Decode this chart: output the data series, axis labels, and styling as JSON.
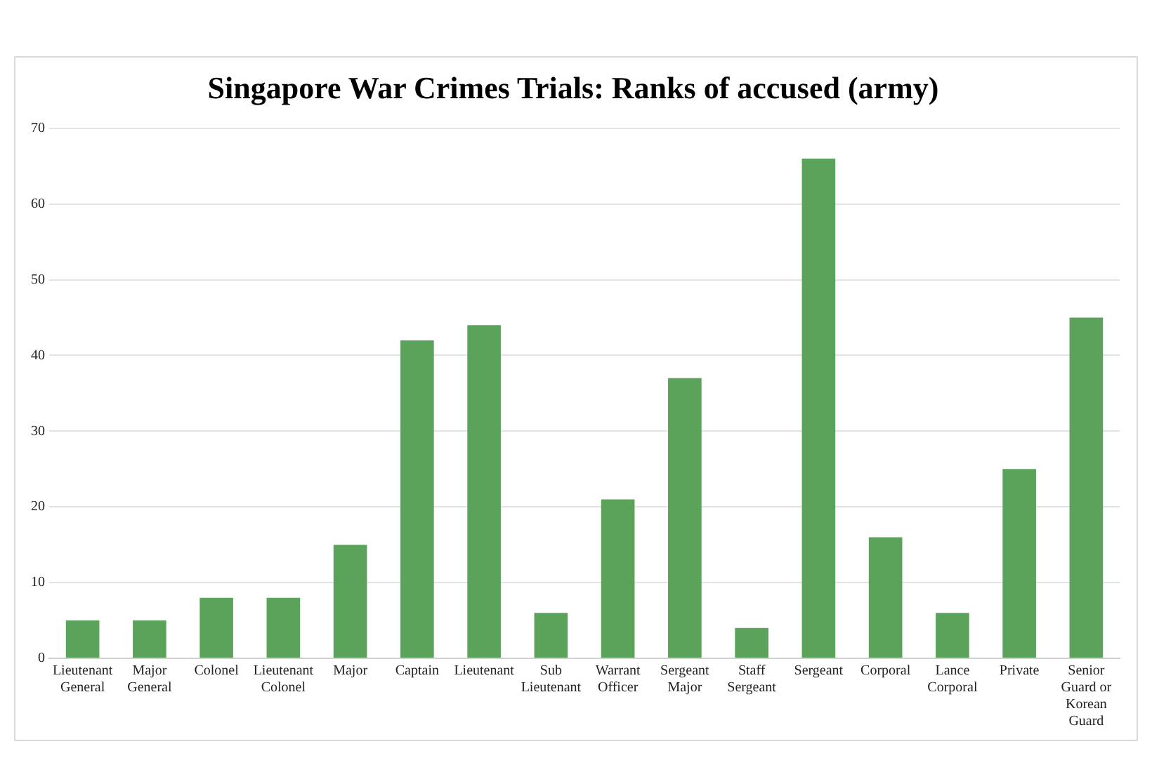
{
  "chart_data": {
    "type": "bar",
    "title": "Singapore War Crimes Trials: Ranks of accused (army)",
    "categories": [
      "Lieutenant General",
      "Major General",
      "Colonel",
      "Lieutenant Colonel",
      "Major",
      "Captain",
      "Lieutenant",
      "Sub Lieutenant",
      "Warrant Officer",
      "Sergeant Major",
      "Staff Sergeant",
      "Sergeant",
      "Corporal",
      "Lance Corporal",
      "Private",
      "Senior Guard or Korean Guard"
    ],
    "values": [
      5,
      5,
      8,
      8,
      15,
      42,
      44,
      6,
      21,
      37,
      4,
      66,
      16,
      6,
      25,
      45
    ],
    "color": "#5ba35b",
    "ylim": [
      0,
      70
    ],
    "yticks": [
      0,
      10,
      20,
      30,
      40,
      50,
      60,
      70
    ],
    "grid": "y",
    "legend": false
  }
}
